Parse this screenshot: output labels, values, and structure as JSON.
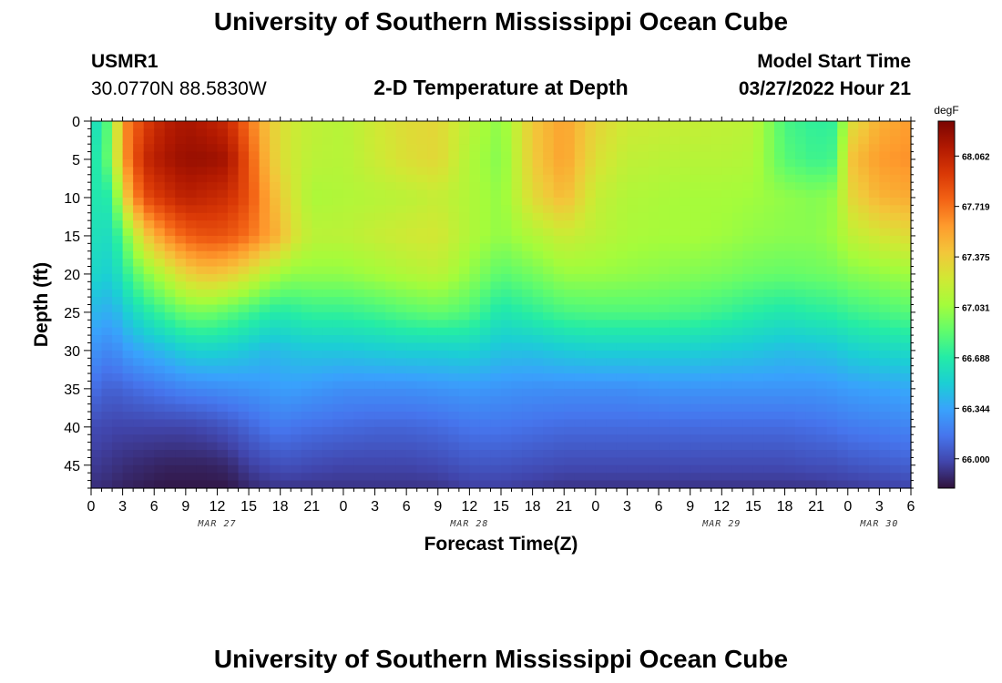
{
  "header": {
    "title": "University of Southern Mississippi Ocean Cube",
    "station_id": "USMR1",
    "station_coords": "30.0770N  88.5830W",
    "subtitle": "2-D Temperature at Depth",
    "model_start_label": "Model Start Time",
    "model_start_value": "03/27/2022 Hour 21"
  },
  "footer": {
    "title": "University of Southern Mississippi Ocean Cube"
  },
  "chart_data": {
    "type": "heatmap",
    "title": "2-D Temperature at Depth",
    "xlabel": "Forecast Time(Z)",
    "ylabel": "Depth (ft)",
    "x_range_hours": [
      0,
      78
    ],
    "y_range_ft": [
      0,
      48
    ],
    "x_ticks": [
      {
        "hour": 0,
        "label": "0"
      },
      {
        "hour": 3,
        "label": "3"
      },
      {
        "hour": 6,
        "label": "6"
      },
      {
        "hour": 9,
        "label": "9"
      },
      {
        "hour": 12,
        "label": "12"
      },
      {
        "hour": 15,
        "label": "15"
      },
      {
        "hour": 18,
        "label": "18"
      },
      {
        "hour": 21,
        "label": "21"
      },
      {
        "hour": 24,
        "label": "0"
      },
      {
        "hour": 27,
        "label": "3"
      },
      {
        "hour": 30,
        "label": "6"
      },
      {
        "hour": 33,
        "label": "9"
      },
      {
        "hour": 36,
        "label": "12"
      },
      {
        "hour": 39,
        "label": "15"
      },
      {
        "hour": 42,
        "label": "18"
      },
      {
        "hour": 45,
        "label": "21"
      },
      {
        "hour": 48,
        "label": "0"
      },
      {
        "hour": 51,
        "label": "3"
      },
      {
        "hour": 54,
        "label": "6"
      },
      {
        "hour": 57,
        "label": "9"
      },
      {
        "hour": 60,
        "label": "12"
      },
      {
        "hour": 63,
        "label": "15"
      },
      {
        "hour": 66,
        "label": "18"
      },
      {
        "hour": 69,
        "label": "21"
      },
      {
        "hour": 72,
        "label": "0"
      },
      {
        "hour": 75,
        "label": "3"
      },
      {
        "hour": 78,
        "label": "6"
      }
    ],
    "y_ticks": [
      0,
      5,
      10,
      15,
      20,
      25,
      30,
      35,
      40,
      45
    ],
    "date_labels": [
      {
        "hour": 12,
        "label": "MAR 27"
      },
      {
        "hour": 36,
        "label": "MAR 28"
      },
      {
        "hour": 60,
        "label": "MAR 29"
      },
      {
        "hour": 75,
        "label": "MAR 30"
      }
    ],
    "colorbar": {
      "unit": "degF",
      "min": 65.8,
      "max": 68.3,
      "ticks": [
        "68.062",
        "67.719",
        "67.375",
        "67.031",
        "66.688",
        "66.344",
        "66.000"
      ],
      "colors": [
        "#30123b",
        "#4145ab",
        "#4675ed",
        "#39a2fc",
        "#1bcfd4",
        "#24eca6",
        "#61fc6c",
        "#a4fc3b",
        "#d1e834",
        "#f3c63a",
        "#fe9b2d",
        "#f36315",
        "#d93806",
        "#b11901",
        "#7a0402"
      ]
    },
    "time_grid_hours": [
      0,
      1,
      2,
      3,
      5,
      7,
      9,
      11,
      13,
      15,
      17,
      18,
      19,
      21,
      24,
      27,
      30,
      33,
      36,
      39,
      42,
      45,
      48,
      51,
      54,
      57,
      60,
      63,
      66,
      69,
      71,
      72,
      75,
      78
    ],
    "depth_grid_ft": [
      0,
      5,
      10,
      15,
      20,
      25,
      30,
      35,
      40,
      45,
      48
    ],
    "temperature_degF": [
      [
        66.55,
        66.62,
        66.66,
        66.62,
        66.56,
        66.42,
        66.28,
        66.15,
        66.0,
        65.95,
        65.9
      ],
      [
        66.7,
        66.74,
        66.66,
        66.6,
        66.54,
        66.4,
        66.25,
        66.1,
        66.0,
        65.93,
        65.9
      ],
      [
        66.95,
        66.98,
        66.7,
        66.6,
        66.52,
        66.38,
        66.22,
        66.08,
        65.98,
        65.92,
        65.88
      ],
      [
        67.6,
        67.55,
        67.3,
        66.85,
        66.68,
        66.48,
        66.3,
        66.1,
        65.98,
        65.9,
        65.86
      ],
      [
        67.9,
        68.02,
        67.85,
        67.35,
        66.95,
        66.65,
        66.38,
        66.14,
        65.98,
        65.88,
        65.84
      ],
      [
        68.08,
        68.14,
        67.98,
        67.62,
        67.14,
        66.78,
        66.44,
        66.18,
        65.98,
        65.86,
        65.82
      ],
      [
        68.15,
        68.2,
        68.08,
        67.78,
        67.34,
        66.9,
        66.52,
        66.22,
        65.98,
        65.86,
        65.82
      ],
      [
        68.1,
        68.2,
        68.04,
        67.84,
        67.42,
        66.92,
        66.54,
        66.24,
        66.0,
        65.86,
        65.82
      ],
      [
        68.02,
        68.16,
        68.0,
        67.82,
        67.38,
        66.86,
        66.52,
        66.26,
        66.04,
        65.88,
        65.82
      ],
      [
        67.72,
        67.82,
        67.84,
        67.72,
        67.26,
        66.78,
        66.48,
        66.28,
        66.1,
        65.96,
        65.88
      ],
      [
        67.38,
        67.42,
        67.52,
        67.55,
        67.1,
        66.7,
        66.42,
        66.3,
        66.16,
        66.0,
        65.92
      ],
      [
        67.3,
        67.3,
        67.38,
        67.48,
        67.05,
        66.68,
        66.44,
        66.32,
        66.18,
        66.02,
        65.92
      ],
      [
        67.22,
        67.22,
        67.26,
        67.3,
        67.0,
        66.7,
        66.46,
        66.32,
        66.16,
        66.02,
        65.92
      ],
      [
        67.16,
        67.14,
        67.08,
        67.14,
        67.0,
        66.74,
        66.48,
        66.3,
        66.14,
        66.0,
        65.92
      ],
      [
        67.12,
        67.12,
        67.1,
        67.14,
        67.0,
        66.74,
        66.48,
        66.26,
        66.12,
        65.98,
        65.92
      ],
      [
        67.22,
        67.2,
        67.12,
        67.18,
        67.05,
        66.78,
        66.5,
        66.26,
        66.1,
        65.98,
        65.92
      ],
      [
        67.3,
        67.28,
        67.14,
        67.22,
        67.1,
        66.84,
        66.52,
        66.26,
        66.1,
        65.98,
        65.92
      ],
      [
        67.32,
        67.32,
        67.18,
        67.24,
        67.14,
        66.88,
        66.52,
        66.28,
        66.12,
        66.0,
        65.92
      ],
      [
        67.14,
        67.1,
        67.1,
        67.1,
        67.0,
        66.82,
        66.54,
        66.3,
        66.16,
        66.04,
        65.96
      ],
      [
        66.98,
        66.96,
        67.0,
        67.0,
        66.85,
        66.65,
        66.46,
        66.28,
        66.16,
        66.04,
        65.96
      ],
      [
        67.4,
        67.38,
        67.3,
        67.1,
        66.92,
        66.72,
        66.46,
        66.26,
        66.14,
        66.02,
        65.94
      ],
      [
        67.56,
        67.56,
        67.46,
        67.2,
        67.02,
        66.8,
        66.5,
        66.26,
        66.12,
        66.0,
        65.92
      ],
      [
        67.34,
        67.28,
        67.18,
        67.14,
        67.02,
        66.82,
        66.52,
        66.26,
        66.12,
        66.0,
        65.92
      ],
      [
        67.22,
        67.16,
        67.1,
        67.08,
        67.0,
        66.82,
        66.52,
        66.26,
        66.12,
        66.0,
        65.92
      ],
      [
        67.2,
        67.14,
        67.08,
        67.06,
        66.98,
        66.82,
        66.52,
        66.28,
        66.12,
        66.0,
        65.92
      ],
      [
        67.18,
        67.12,
        67.06,
        67.06,
        66.96,
        66.8,
        66.52,
        66.28,
        66.12,
        66.0,
        65.92
      ],
      [
        67.16,
        67.12,
        67.06,
        67.04,
        66.94,
        66.76,
        66.5,
        66.28,
        66.12,
        66.0,
        65.92
      ],
      [
        67.14,
        67.1,
        67.04,
        67.0,
        66.9,
        66.7,
        66.48,
        66.28,
        66.12,
        66.0,
        65.92
      ],
      [
        66.8,
        66.84,
        67.0,
        66.98,
        66.88,
        66.66,
        66.44,
        66.28,
        66.12,
        66.0,
        65.92
      ],
      [
        66.72,
        66.76,
        66.96,
        66.98,
        66.9,
        66.7,
        66.46,
        66.28,
        66.14,
        66.02,
        65.92
      ],
      [
        66.74,
        66.8,
        67.02,
        67.04,
        66.92,
        66.72,
        66.48,
        66.3,
        66.16,
        66.02,
        65.94
      ],
      [
        67.25,
        67.4,
        67.3,
        67.14,
        66.96,
        66.76,
        66.52,
        66.32,
        66.18,
        66.04,
        65.94
      ],
      [
        67.5,
        67.58,
        67.48,
        67.24,
        67.0,
        66.8,
        66.56,
        66.34,
        66.2,
        66.06,
        65.96
      ],
      [
        67.58,
        67.62,
        67.52,
        67.3,
        67.04,
        66.84,
        66.58,
        66.36,
        66.22,
        66.08,
        65.98
      ]
    ]
  }
}
